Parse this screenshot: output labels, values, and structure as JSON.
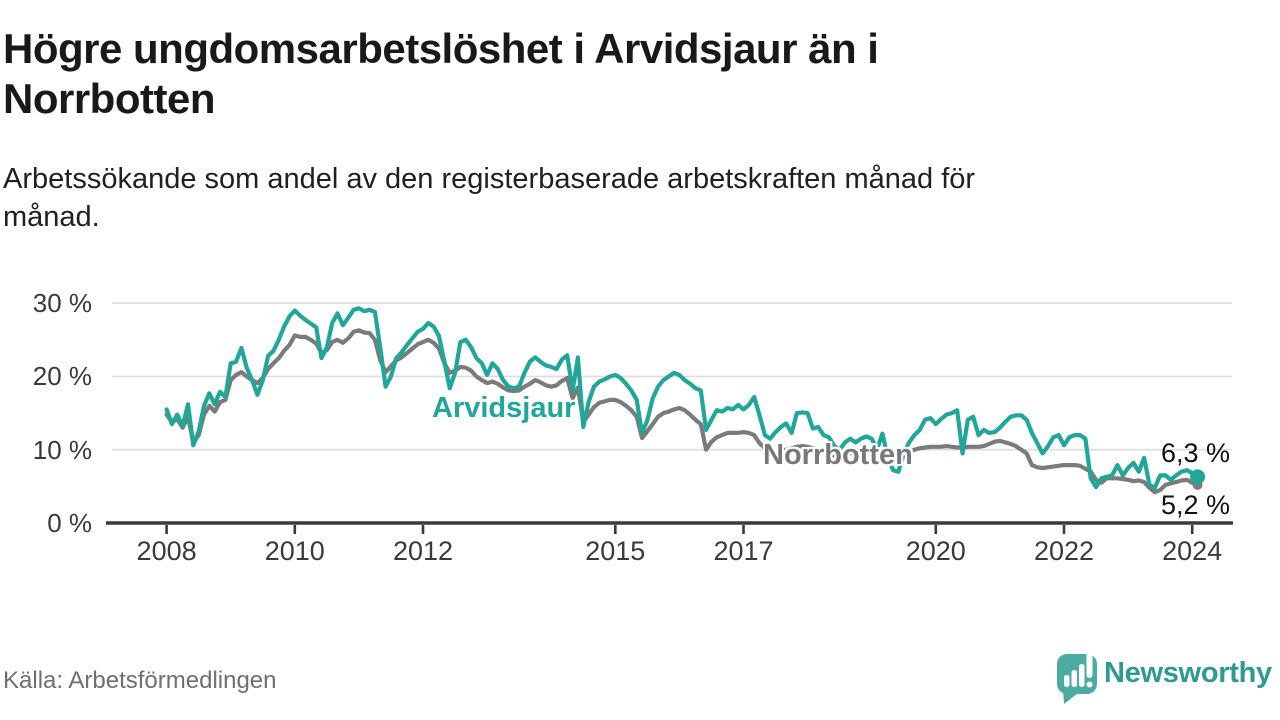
{
  "header": {
    "title_line1": "Högre ungdomsarbetslöshet i Arvidsjaur än i",
    "title_line2": "Norrbotten",
    "subtitle_line1": "Arbetssökande som andel av den registerbaserade arbetskraften månad för",
    "subtitle_line2": "månad."
  },
  "footer": {
    "source": "Källa: Arbetsförmedlingen",
    "logo_text": "Newsworthy",
    "logo_icon": "speech-bubble-with-bar-chart-and-exclamation",
    "logo_teal": "#4aaca2",
    "wordmark_color": "#2d9a91"
  },
  "chart_data": {
    "type": "line",
    "title": "Högre ungdomsarbetslöshet i Arvidsjaur än i Norrbotten",
    "subtitle": "Arbetssökande som andel av den registerbaserade arbetskraften månad för månad.",
    "x_start": "2008-01",
    "x_end": "2024-02",
    "x_interval": "monthly",
    "x_ticks": [
      2008,
      2010,
      2012,
      2015,
      2017,
      2020,
      2022,
      2024
    ],
    "y_ticks": [
      0,
      10,
      20,
      30
    ],
    "y_tick_suffix": " %",
    "ylim": [
      0,
      32
    ],
    "grid": "horizontal-light",
    "axis_color": "#3a3a3a",
    "grid_color": "#dcdcdc",
    "legend_position": "inline-labels-on-lines",
    "series": [
      {
        "name": "Arvidsjaur",
        "color": "#21a69a",
        "end_value": 6.3,
        "end_value_label": "6,3 %",
        "values": [
          15.5,
          13.5,
          14.8,
          13.2,
          16.2,
          10.6,
          12.5,
          16.0,
          17.7,
          16.2,
          17.9,
          17.2,
          21.8,
          22.0,
          23.9,
          21.2,
          19.5,
          17.5,
          19.5,
          22.8,
          23.5,
          25.0,
          26.8,
          28.2,
          29.0,
          28.3,
          27.7,
          27.2,
          26.7,
          22.5,
          24.0,
          27.3,
          28.6,
          27.0,
          28.0,
          29.1,
          29.3,
          28.9,
          29.1,
          28.8,
          23.9,
          18.6,
          20.0,
          22.5,
          23.3,
          24.3,
          25.2,
          26.1,
          26.5,
          27.3,
          26.8,
          25.5,
          22.0,
          18.4,
          20.5,
          24.7,
          25.0,
          24.0,
          22.5,
          21.8,
          20.2,
          21.8,
          21.0,
          19.5,
          18.6,
          18.4,
          18.6,
          20.5,
          22.0,
          22.6,
          22.0,
          21.5,
          21.3,
          21.0,
          22.3,
          22.9,
          18.1,
          22.6,
          13.1,
          16.5,
          18.6,
          19.3,
          19.6,
          20.0,
          20.2,
          19.8,
          19.0,
          18.1,
          16.8,
          12.3,
          14.0,
          17.0,
          18.6,
          19.5,
          20.0,
          20.5,
          20.2,
          19.5,
          19.0,
          18.4,
          18.1,
          12.7,
          14.1,
          15.4,
          15.2,
          15.7,
          15.5,
          16.1,
          15.5,
          16.1,
          17.2,
          14.7,
          12.0,
          11.5,
          12.4,
          13.1,
          13.6,
          12.3,
          15.0,
          15.1,
          15.0,
          12.9,
          13.1,
          12.0,
          11.7,
          10.5,
          10.0,
          11.0,
          11.5,
          11.0,
          11.5,
          11.8,
          11.5,
          10.0,
          12.2,
          9.0,
          7.2,
          7.0,
          9.5,
          11.0,
          12.0,
          12.7,
          14.1,
          14.3,
          13.5,
          14.2,
          14.8,
          15.0,
          15.4,
          9.5,
          14.1,
          14.5,
          12.0,
          12.7,
          12.3,
          12.4,
          13.0,
          13.8,
          14.5,
          14.7,
          14.7,
          14.1,
          12.3,
          10.9,
          9.5,
          10.5,
          11.7,
          12.0,
          10.6,
          11.7,
          12.0,
          12.0,
          11.5,
          6.1,
          4.9,
          6.1,
          6.3,
          6.5,
          7.9,
          6.5,
          7.5,
          8.2,
          7.0,
          8.9,
          5.2,
          4.8,
          6.5,
          6.5,
          5.9,
          6.5,
          7.0,
          7.2,
          6.8,
          6.3
        ]
      },
      {
        "name": "Norrbotten",
        "color": "#7b7b7b",
        "end_value": 5.2,
        "end_value_label": "5,2 %",
        "values": [
          14.8,
          13.8,
          14.2,
          13.0,
          14.5,
          11.0,
          12.0,
          14.8,
          16.0,
          15.2,
          16.5,
          16.8,
          19.5,
          20.2,
          20.6,
          20.0,
          19.5,
          19.1,
          19.8,
          21.0,
          21.8,
          22.5,
          23.5,
          24.3,
          25.6,
          25.4,
          25.4,
          25.0,
          24.5,
          23.2,
          23.6,
          24.7,
          25.0,
          24.6,
          25.2,
          26.1,
          26.3,
          26.0,
          25.9,
          25.0,
          22.2,
          20.6,
          21.4,
          22.2,
          22.6,
          23.2,
          23.8,
          24.4,
          24.7,
          25.0,
          24.6,
          23.8,
          21.8,
          20.5,
          20.8,
          21.3,
          21.2,
          20.8,
          20.0,
          19.5,
          19.1,
          19.3,
          19.0,
          18.5,
          18.1,
          18.0,
          18.1,
          18.6,
          19.0,
          19.5,
          19.2,
          18.8,
          18.6,
          18.8,
          19.4,
          19.8,
          17.0,
          18.5,
          13.8,
          14.8,
          15.8,
          16.4,
          16.6,
          16.8,
          16.8,
          16.5,
          16.0,
          15.4,
          14.5,
          11.6,
          12.5,
          13.5,
          14.5,
          15.0,
          15.2,
          15.5,
          15.7,
          15.4,
          14.8,
          14.1,
          13.5,
          10.0,
          11.1,
          11.7,
          12.0,
          12.3,
          12.3,
          12.3,
          12.4,
          12.3,
          12.0,
          10.9,
          10.2,
          9.8,
          9.6,
          9.8,
          10.0,
          10.2,
          10.4,
          10.5,
          10.4,
          10.2,
          10.0,
          9.7,
          9.4,
          9.2,
          9.0,
          9.3,
          9.5,
          9.7,
          9.8,
          10.0,
          9.9,
          9.7,
          9.5,
          9.3,
          9.2,
          9.0,
          9.3,
          9.7,
          10.0,
          10.2,
          10.3,
          10.4,
          10.4,
          10.4,
          10.5,
          10.4,
          10.3,
          10.3,
          10.4,
          10.4,
          10.4,
          10.5,
          10.8,
          11.1,
          11.2,
          11.0,
          10.8,
          10.5,
          10.0,
          9.5,
          7.9,
          7.6,
          7.5,
          7.6,
          7.7,
          7.8,
          7.9,
          7.9,
          7.9,
          7.8,
          7.4,
          7.0,
          5.9,
          5.5,
          6.1,
          6.1,
          6.1,
          6.0,
          5.9,
          5.7,
          5.8,
          5.6,
          4.8,
          4.2,
          4.5,
          5.2,
          5.4,
          5.6,
          5.8,
          5.9,
          5.5,
          5.2
        ]
      }
    ]
  }
}
